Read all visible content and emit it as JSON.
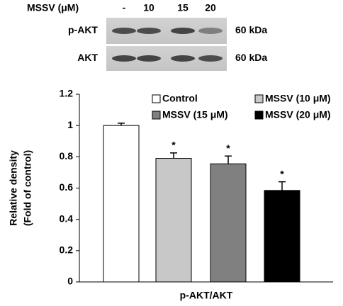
{
  "blot": {
    "treatment": "MSSV (μM)",
    "lanes": [
      "-",
      "10",
      "15",
      "20"
    ],
    "rows": [
      {
        "label": "p-AKT",
        "size": "60 kDa"
      },
      {
        "label": "AKT",
        "size": "60 kDa"
      }
    ]
  },
  "chart_data": {
    "type": "bar",
    "categories": [
      "p-AKT/AKT"
    ],
    "ylabel": [
      "Relative density",
      "(Fold of control)"
    ],
    "ylim": [
      0,
      1.2
    ],
    "yticks": [
      0,
      0.2,
      0.4,
      0.6,
      0.8,
      1,
      1.2
    ],
    "series": [
      {
        "name": "Control",
        "color": "#ffffff",
        "values": [
          1.0
        ],
        "errors": [
          0.015
        ]
      },
      {
        "name": "MSSV (10 μM)",
        "color": "#c8c8c8",
        "values": [
          0.79
        ],
        "errors": [
          0.035
        ],
        "note": "*"
      },
      {
        "name": "MSSV (15 μM)",
        "color": "#808080",
        "values": [
          0.755
        ],
        "errors": [
          0.05
        ],
        "note": "*"
      },
      {
        "name": "MSSV (20 μM)",
        "color": "#000000",
        "values": [
          0.585
        ],
        "errors": [
          0.055
        ],
        "note": "*"
      }
    ]
  }
}
